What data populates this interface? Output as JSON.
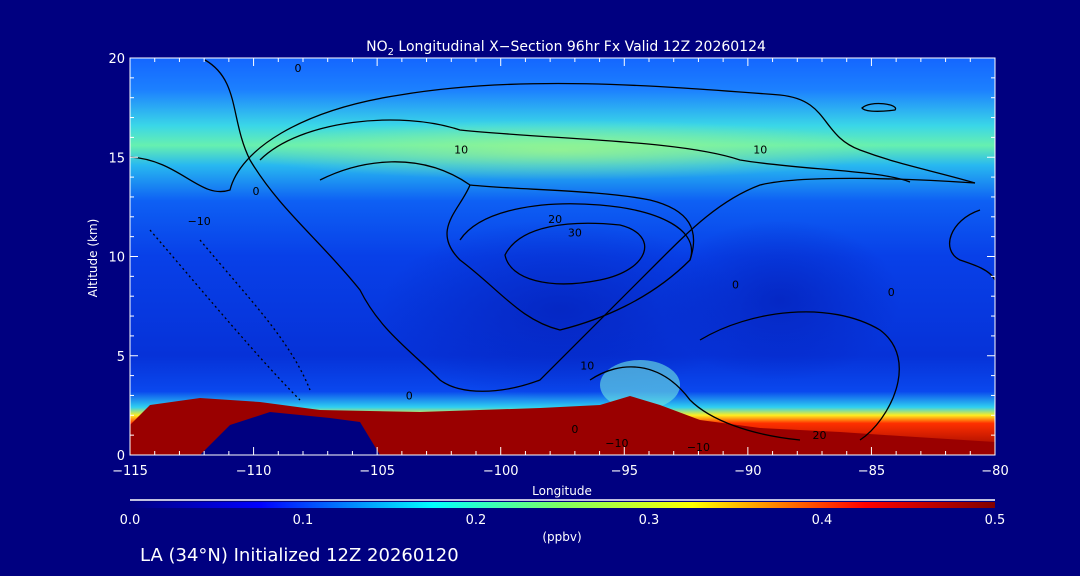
{
  "chart_data": {
    "type": "heatmap",
    "title_prefix": "NO",
    "title_sub": "2",
    "title_rest": " Longitudinal X−Section 96hr  Fx Valid 12Z 20260124",
    "xlabel": "Longitude",
    "ylabel": "Altitude (km)",
    "xlim": [
      -115,
      -80
    ],
    "ylim": [
      0,
      20
    ],
    "xticks": [
      -115,
      -110,
      -105,
      -100,
      -95,
      -90,
      -85,
      -80
    ],
    "xtick_labels": [
      "−115",
      "−110",
      "−105",
      "−100",
      "−95",
      "−90",
      "−85",
      "−80"
    ],
    "yticks": [
      0,
      5,
      10,
      15,
      20
    ],
    "ytick_labels": [
      "0",
      "5",
      "10",
      "15",
      "20"
    ],
    "colorbar": {
      "range": [
        0.0,
        0.5
      ],
      "tick_labels": [
        "0.0",
        "0.1",
        "0.2",
        "0.3",
        "0.4",
        "0.5"
      ],
      "unit_label": "(ppbv)",
      "colors": [
        "#000080",
        "#0000ff",
        "#00ffff",
        "#ffff00",
        "#ff0000",
        "#800000"
      ]
    },
    "contour_labels": [
      {
        "text": "0",
        "lon": -108.2,
        "alt": 19.5
      },
      {
        "text": "10",
        "lon": -101.6,
        "alt": 15.4
      },
      {
        "text": "10",
        "lon": -89.5,
        "alt": 15.4
      },
      {
        "text": "0",
        "lon": -109.9,
        "alt": 13.3
      },
      {
        "text": "−10",
        "lon": -112.2,
        "alt": 11.8
      },
      {
        "text": "20",
        "lon": -97.8,
        "alt": 11.9
      },
      {
        "text": "30",
        "lon": -97.0,
        "alt": 11.2
      },
      {
        "text": "0",
        "lon": -90.5,
        "alt": 8.6
      },
      {
        "text": "0",
        "lon": -84.2,
        "alt": 8.2
      },
      {
        "text": "10",
        "lon": -96.5,
        "alt": 4.5
      },
      {
        "text": "0",
        "lon": -103.7,
        "alt": 3.0
      },
      {
        "text": "0",
        "lon": -97.0,
        "alt": 1.3
      },
      {
        "text": "−10",
        "lon": -95.3,
        "alt": 0.6
      },
      {
        "text": "−10",
        "lon": -92.0,
        "alt": 0.4
      },
      {
        "text": "20",
        "lon": -87.1,
        "alt": 1.0
      }
    ]
  },
  "footer": "LA (34°N) Initialized 12Z 20260120"
}
